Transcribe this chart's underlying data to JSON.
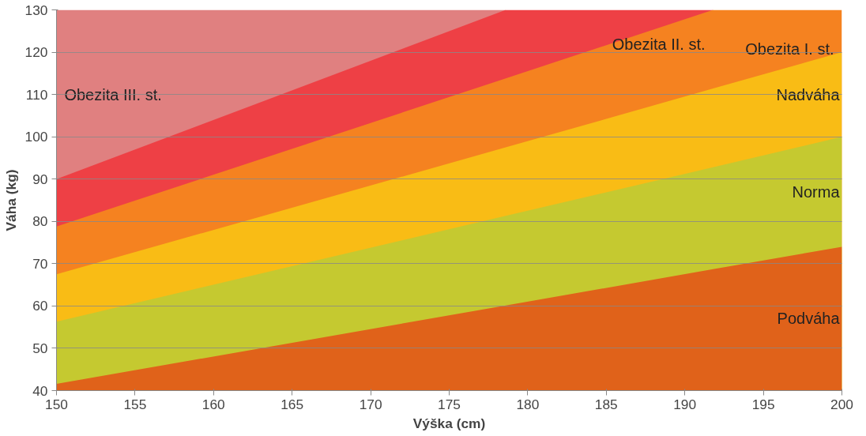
{
  "chart_data": {
    "type": "area",
    "xlabel": "Výška (cm)",
    "ylabel": "Váha (kg)",
    "x": [
      150,
      178.6,
      191.8,
      200
    ],
    "series": [
      {
        "name": "Podváha",
        "color": "#e0621a",
        "values": [
          41.6,
          60.1,
          68.7,
          74
        ]
      },
      {
        "name": "Norma",
        "color": "#c5c930",
        "values": [
          56.3,
          81.3,
          92.8,
          100
        ]
      },
      {
        "name": "Nadváha",
        "color": "#f9bc15",
        "values": [
          67.5,
          97.5,
          111.4,
          120
        ]
      },
      {
        "name": "Obezita I. st.",
        "color": "#f58220",
        "values": [
          78.8,
          113.8,
          130,
          130
        ]
      },
      {
        "name": "Obezita II. st.",
        "color": "#ee4045",
        "x": [
          150,
          178.6,
          191.8
        ],
        "values": [
          90,
          130,
          130
        ]
      },
      {
        "name": "Obezita III. st.",
        "color": "#e08080",
        "x": [
          150,
          178.6
        ],
        "values": [
          130,
          130
        ]
      }
    ],
    "xlim": [
      150,
      200
    ],
    "xticks": [
      150,
      155,
      160,
      165,
      170,
      175,
      180,
      185,
      190,
      195,
      200
    ],
    "ylim": [
      40,
      130
    ],
    "yticks": [
      40,
      50,
      60,
      70,
      80,
      90,
      100,
      110,
      120,
      130
    ],
    "grid": "y",
    "legend": false
  }
}
